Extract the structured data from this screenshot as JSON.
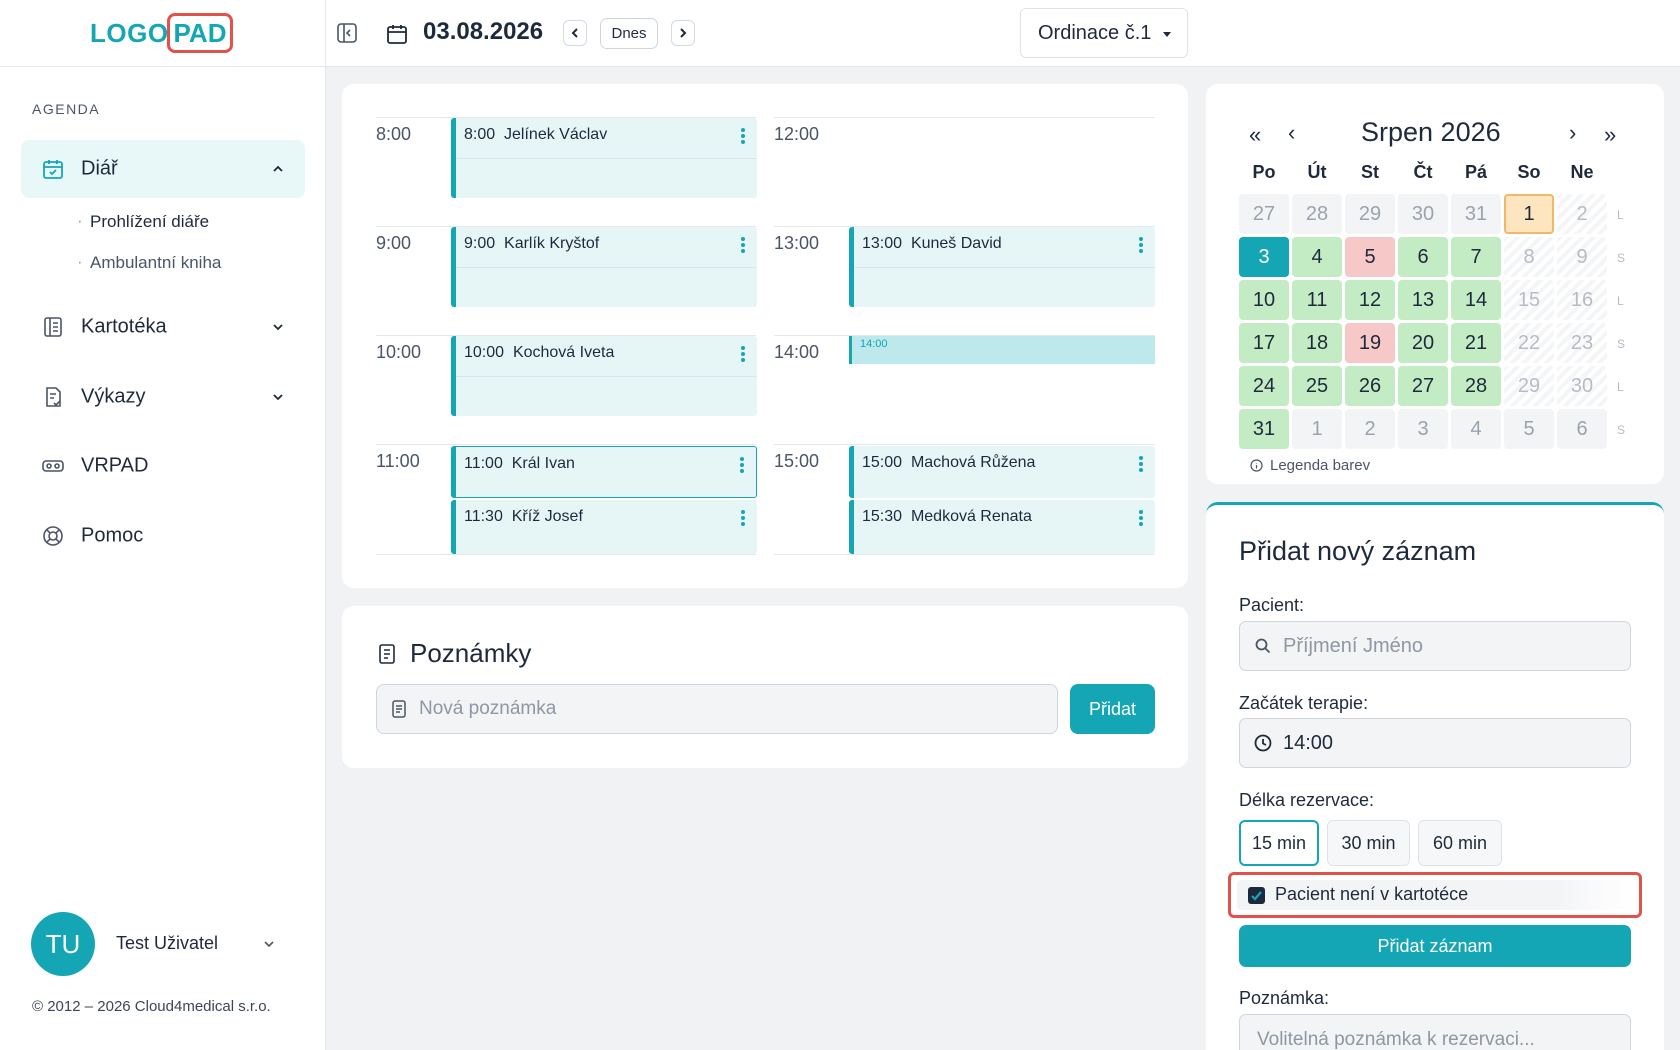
{
  "logo": {
    "part1": "LOGO",
    "part2": "PAD"
  },
  "sidebar": {
    "section_label": "AGENDA",
    "items": [
      {
        "label": "Diář",
        "icon": "calendar-check-icon",
        "active": true,
        "expanded": true
      },
      {
        "label": "Kartotéka",
        "icon": "file-cabinet-icon"
      },
      {
        "label": "Výkazy",
        "icon": "report-icon"
      },
      {
        "label": "VRPAD",
        "icon": "vr-headset-icon"
      },
      {
        "label": "Pomoc",
        "icon": "lifebuoy-icon"
      }
    ],
    "sub_items": [
      {
        "label": "Prohlížení diáře",
        "active": true
      },
      {
        "label": "Ambulantní kniha"
      }
    ],
    "user": {
      "initials": "TU",
      "name": "Test Uživatel"
    },
    "copyright": "© 2012 – 2026 Cloud4medical s.r.o."
  },
  "header": {
    "date": "03.08.2026",
    "today_label": "Dnes",
    "location": "Ordinace č.1"
  },
  "schedule": {
    "hours": [
      "8:00",
      "9:00",
      "10:00",
      "11:00",
      "12:00",
      "13:00",
      "14:00",
      "15:00"
    ],
    "appointments": [
      {
        "time": "8:00",
        "name": "Jelínek Václav"
      },
      {
        "time": "9:00",
        "name": "Karlík Kryštof"
      },
      {
        "time": "10:00",
        "name": "Kochová Iveta"
      },
      {
        "time": "11:00",
        "name": "Král Ivan"
      },
      {
        "time": "11:30",
        "name": "Kříž Josef"
      },
      {
        "time": "13:00",
        "name": "Kuneš David"
      },
      {
        "time": "15:00",
        "name": "Machová Růžena"
      },
      {
        "time": "15:30",
        "name": "Medková Renata"
      }
    ],
    "new_slot_label": "14:00"
  },
  "notes": {
    "title": "Poznámky",
    "placeholder": "Nová poznámka",
    "add_label": "Přidat"
  },
  "calendar": {
    "month_label": "Srpen 2026",
    "nav": {
      "prev_year": "«",
      "prev": "‹",
      "next": "›",
      "next_year": "»"
    },
    "weekdays": [
      "Po",
      "Út",
      "St",
      "Čt",
      "Pá",
      "So",
      "Ne"
    ],
    "week_letters": [
      "L",
      "S",
      "L",
      "S",
      "L",
      "S"
    ],
    "weeks": [
      [
        [
          "27",
          "out"
        ],
        [
          "28",
          "out"
        ],
        [
          "29",
          "out"
        ],
        [
          "30",
          "out"
        ],
        [
          "31",
          "out"
        ],
        [
          "1",
          "today"
        ],
        [
          "2",
          "weekend"
        ]
      ],
      [
        [
          "3",
          "selected"
        ],
        [
          "4",
          "green"
        ],
        [
          "5",
          "red"
        ],
        [
          "6",
          "green"
        ],
        [
          "7",
          "green"
        ],
        [
          "8",
          "weekend"
        ],
        [
          "9",
          "weekend"
        ]
      ],
      [
        [
          "10",
          "green"
        ],
        [
          "11",
          "green"
        ],
        [
          "12",
          "green"
        ],
        [
          "13",
          "green"
        ],
        [
          "14",
          "green"
        ],
        [
          "15",
          "weekend"
        ],
        [
          "16",
          "weekend"
        ]
      ],
      [
        [
          "17",
          "green"
        ],
        [
          "18",
          "green"
        ],
        [
          "19",
          "red"
        ],
        [
          "20",
          "green"
        ],
        [
          "21",
          "green"
        ],
        [
          "22",
          "weekend"
        ],
        [
          "23",
          "weekend"
        ]
      ],
      [
        [
          "24",
          "green"
        ],
        [
          "25",
          "green"
        ],
        [
          "26",
          "green"
        ],
        [
          "27",
          "green"
        ],
        [
          "28",
          "green"
        ],
        [
          "29",
          "weekend"
        ],
        [
          "30",
          "weekend"
        ]
      ],
      [
        [
          "31",
          "green"
        ],
        [
          "1",
          "out"
        ],
        [
          "2",
          "out"
        ],
        [
          "3",
          "out"
        ],
        [
          "4",
          "out"
        ],
        [
          "5",
          "out"
        ],
        [
          "6",
          "out"
        ]
      ]
    ],
    "legend_label": "Legenda barev"
  },
  "form": {
    "title": "Přidat nový záznam",
    "patient_label": "Pacient:",
    "patient_placeholder": "Příjmení Jméno",
    "start_label": "Začátek terapie:",
    "start_value": "14:00",
    "duration_label": "Délka rezervace:",
    "durations": [
      "15 min",
      "30 min",
      "60 min"
    ],
    "not_in_records_label": "Pacient není v kartotéce",
    "submit_label": "Přidat záznam",
    "note_label": "Poznámka:",
    "note_placeholder": "Volitelná poznámka k rezervaci..."
  },
  "colors": {
    "accent": "#14a6b5",
    "highlight": "#e0524a",
    "available": "#c4ecc4",
    "busy": "#f7c8c8",
    "today": "#fde6bf"
  }
}
